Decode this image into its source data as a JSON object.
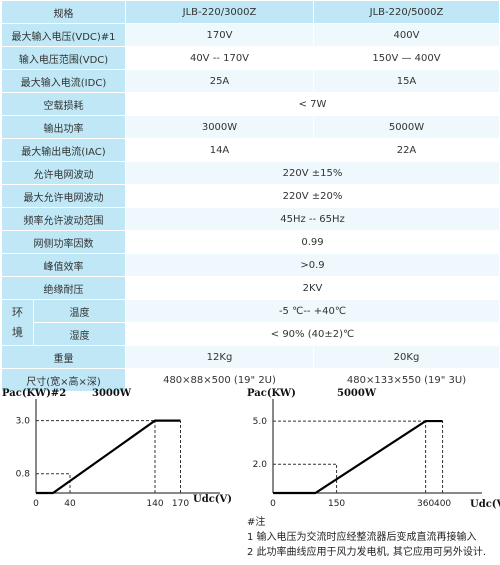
{
  "table": {
    "header": {
      "label": "规格",
      "col1": "JLB-220/3000Z",
      "col2": "JLB-220/5000Z"
    },
    "rows": [
      {
        "label": "最大输入电压(VDC)#1",
        "v1": "170V",
        "v2": "400V"
      },
      {
        "label": "输入电压范围(VDC)",
        "v1": "40V -- 170V",
        "v2": "150V — 400V"
      },
      {
        "label": "最大输入电流(IDC)",
        "v1": "25A",
        "v2": "15A"
      },
      {
        "label": "空载损耗",
        "span": "< 7W"
      },
      {
        "label": "输出功率",
        "v1": "3000W",
        "v2": "5000W"
      },
      {
        "label": "最大输出电流(IAC)",
        "v1": "14A",
        "v2": "22A"
      },
      {
        "label": "允许电网波动",
        "span": "220V ±15%"
      },
      {
        "label": "最大允许电网波动",
        "span": "220V ±20%"
      },
      {
        "label": "频率允许波动范围",
        "span": "45Hz -- 65Hz"
      },
      {
        "label": "网侧功率因数",
        "span": "0.99"
      },
      {
        "label": "峰值效率",
        "span": ">0.9"
      },
      {
        "label": "绝缘耐压",
        "span": "2KV"
      }
    ],
    "env": {
      "group_label_1": "环",
      "group_label_2": "境",
      "rows": [
        {
          "label": "温度",
          "span": "-5 ℃-- +40℃"
        },
        {
          "label": "湿度",
          "span": "< 90% (40±2)℃"
        }
      ]
    },
    "tail": [
      {
        "label": "重量",
        "v1": "12Kg",
        "v2": "20Kg"
      },
      {
        "label": "尺寸(宽×高×深)",
        "v1": "480×88×500 (19\" 2U)",
        "v2": "480×133×550 (19\" 3U)"
      }
    ]
  },
  "charts": [
    {
      "type": "line",
      "ylabel": "Pac(KW)#2",
      "title": "3000W",
      "xlabel": "",
      "x_ticks": [
        "0",
        "40",
        "140",
        "170"
      ],
      "y_ticks": [
        "3.0",
        "0.8"
      ],
      "xlim": [
        0,
        200
      ],
      "ylim": [
        0,
        3.4
      ],
      "series": [
        {
          "x": [
            0,
            20,
            140,
            170
          ],
          "y": [
            0,
            0,
            3.0,
            3.0
          ]
        }
      ],
      "dashed_x": [
        40,
        140,
        170
      ],
      "dashed_y": [
        0.8,
        3.0
      ]
    },
    {
      "type": "line",
      "ylabel": "Pac(KW)",
      "title": "5000W",
      "xlabel": "Udc(V)",
      "x_ticks": [
        "0",
        "150",
        "360",
        "400"
      ],
      "y_ticks": [
        "5.0",
        "2.0"
      ],
      "xlim": [
        0,
        460
      ],
      "ylim": [
        0,
        5.7
      ],
      "series": [
        {
          "x": [
            0,
            100,
            360,
            400
          ],
          "y": [
            0,
            0,
            5.0,
            5.0
          ]
        }
      ],
      "dashed_x": [
        150,
        360,
        400
      ],
      "dashed_y": [
        2.0,
        5.0
      ]
    }
  ],
  "between_label": "Udc(V)",
  "notes": {
    "title": "#注",
    "n1": "1 输入电压为交流时应经整流器后变成直流再接输入",
    "n2": "2 此功率曲线应用于风力发电机, 其它应用可另外设计."
  }
}
